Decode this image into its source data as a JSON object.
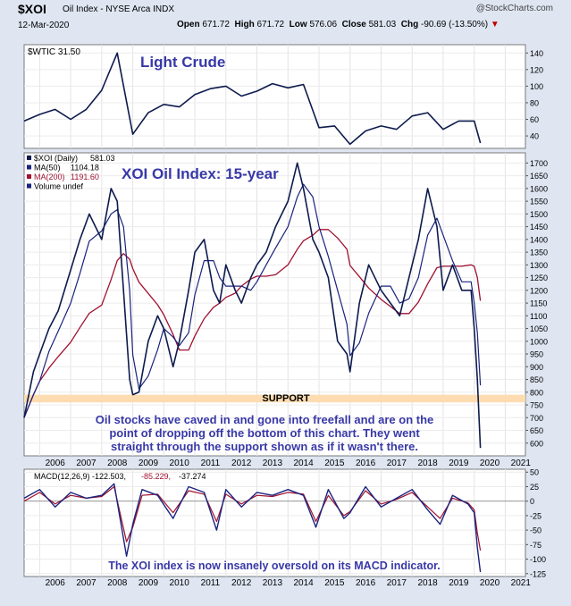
{
  "header": {
    "symbol": "$XOI",
    "name": "Oil Index - NYSE Arca INDX",
    "watermark": "@StockCharts.com",
    "date": "12-Mar-2020",
    "open_label": "Open",
    "open": "671.72",
    "high_label": "High",
    "high": "671.72",
    "low_label": "Low",
    "low": "576.06",
    "close_label": "Close",
    "close": "581.03",
    "chg_label": "Chg",
    "chg": "-90.69 (-13.50%)",
    "chg_marker": "▼"
  },
  "colors": {
    "frame": "#dfe6f2",
    "price_line": "#0d1b4d",
    "ma50": "#1a237e",
    "ma200": "#a01030",
    "annotation": "#3838a8",
    "support_band": "#fcdcb0",
    "macd_line": "#1a237e",
    "signal_line": "#a01030"
  },
  "x_axis_years": [
    "2006",
    "2007",
    "2008",
    "2009",
    "2010",
    "2011",
    "2012",
    "2013",
    "2014",
    "2015",
    "2016",
    "2017",
    "2018",
    "2019",
    "2020",
    "2021"
  ],
  "chart_data": [
    {
      "type": "line",
      "panel": "top",
      "legend": "$WTIC 31.50",
      "annotation": "Light Crude",
      "y_ticks": [
        40,
        60,
        80,
        100,
        120,
        140
      ],
      "ylim": [
        25,
        150
      ],
      "x": [
        2005.5,
        2006.0,
        2006.5,
        2007.0,
        2007.5,
        2008.0,
        2008.5,
        2009.0,
        2009.5,
        2010.0,
        2010.5,
        2011.0,
        2011.5,
        2012.0,
        2012.5,
        2013.0,
        2013.5,
        2014.0,
        2014.5,
        2015.0,
        2015.5,
        2016.0,
        2016.5,
        2017.0,
        2017.5,
        2018.0,
        2018.5,
        2019.0,
        2019.5,
        2020.0,
        2020.2
      ],
      "y": [
        58,
        66,
        72,
        60,
        72,
        95,
        140,
        42,
        68,
        78,
        75,
        90,
        97,
        100,
        88,
        94,
        103,
        98,
        102,
        50,
        52,
        30,
        46,
        52,
        48,
        64,
        68,
        48,
        58,
        58,
        31.5
      ]
    },
    {
      "type": "line",
      "panel": "middle",
      "legend": [
        {
          "symbol": "$XOI (Daily)",
          "value": "581.03"
        },
        {
          "symbol": "MA(50)",
          "value": "1104.18"
        },
        {
          "symbol": "MA(200)",
          "value": "1191.60"
        },
        {
          "symbol": "Volume undef",
          "value": ""
        }
      ],
      "title": "XOI Oil Index: 15-year",
      "support_label": "SUPPORT",
      "support_range": [
        760,
        790
      ],
      "note": "Oil stocks have caved in and gone into freefall and are on the point of dropping off the bottom of this chart. They went straight through the support shown as if it wasn't there.",
      "y_ticks": [
        600,
        650,
        700,
        750,
        800,
        850,
        900,
        950,
        1000,
        1050,
        1100,
        1150,
        1200,
        1250,
        1300,
        1350,
        1400,
        1450,
        1500,
        1550,
        1600,
        1650,
        1700
      ],
      "ylim": [
        550,
        1740
      ],
      "x": [
        2005.5,
        2005.8,
        2006.0,
        2006.3,
        2006.6,
        2007.0,
        2007.3,
        2007.6,
        2008.0,
        2008.3,
        2008.5,
        2008.7,
        2008.9,
        2009.0,
        2009.2,
        2009.5,
        2009.8,
        2010.0,
        2010.3,
        2010.5,
        2010.8,
        2011.0,
        2011.3,
        2011.6,
        2011.8,
        2012.0,
        2012.3,
        2012.5,
        2012.8,
        2013.0,
        2013.3,
        2013.6,
        2014.0,
        2014.3,
        2014.5,
        2014.8,
        2015.0,
        2015.3,
        2015.6,
        2015.9,
        2016.0,
        2016.3,
        2016.6,
        2017.0,
        2017.3,
        2017.6,
        2017.9,
        2018.2,
        2018.5,
        2018.8,
        2019.0,
        2019.3,
        2019.6,
        2019.9,
        2020.0,
        2020.1,
        2020.2
      ],
      "y": [
        700,
        880,
        950,
        1050,
        1120,
        1280,
        1400,
        1500,
        1400,
        1600,
        1550,
        1200,
        850,
        790,
        800,
        1000,
        1100,
        1050,
        900,
        1000,
        1200,
        1350,
        1400,
        1200,
        1150,
        1300,
        1200,
        1150,
        1250,
        1300,
        1350,
        1450,
        1550,
        1700,
        1600,
        1400,
        1350,
        1250,
        1000,
        950,
        880,
        1150,
        1300,
        1200,
        1150,
        1100,
        1250,
        1400,
        1600,
        1450,
        1200,
        1300,
        1200,
        1200,
        1050,
        850,
        581
      ]
    },
    {
      "type": "line",
      "panel": "bottom",
      "legend": [
        {
          "name": "MACD(12,26,9)",
          "value": "-122.503"
        },
        {
          "name": "",
          "value": "-85.229"
        },
        {
          "name": "",
          "value": "-37.274"
        }
      ],
      "annotation": "The XOI index is now insanely oversold on its MACD indicator.",
      "y_ticks": [
        -125,
        -100,
        -75,
        -50,
        -25,
        0,
        25,
        50
      ],
      "ylim": [
        -130,
        55
      ],
      "x": [
        2005.5,
        2006.0,
        2006.5,
        2007.0,
        2007.5,
        2008.0,
        2008.4,
        2008.8,
        2009.0,
        2009.3,
        2009.8,
        2010.3,
        2010.8,
        2011.3,
        2011.7,
        2012.0,
        2012.5,
        2013.0,
        2013.5,
        2014.0,
        2014.5,
        2014.9,
        2015.3,
        2015.8,
        2016.0,
        2016.5,
        2017.0,
        2017.5,
        2018.0,
        2018.5,
        2018.9,
        2019.3,
        2019.8,
        2020.0,
        2020.1,
        2020.2
      ],
      "macd": [
        5,
        20,
        -10,
        15,
        5,
        10,
        30,
        -95,
        -40,
        20,
        10,
        -30,
        25,
        15,
        -50,
        20,
        -10,
        15,
        10,
        20,
        10,
        -45,
        20,
        -30,
        -20,
        25,
        -10,
        5,
        20,
        -15,
        -40,
        10,
        -5,
        -20,
        -80,
        -122.5
      ],
      "signal": [
        0,
        15,
        -5,
        10,
        5,
        8,
        25,
        -70,
        -45,
        10,
        12,
        -20,
        18,
        12,
        -35,
        12,
        -5,
        10,
        8,
        15,
        12,
        -35,
        10,
        -25,
        -18,
        18,
        -5,
        3,
        15,
        -10,
        -30,
        5,
        -3,
        -15,
        -55,
        -85.2
      ]
    }
  ]
}
